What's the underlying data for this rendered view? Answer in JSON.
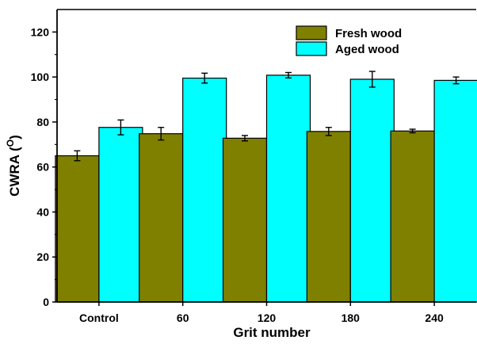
{
  "chart_data": {
    "type": "bar",
    "title": "",
    "xlabel": "Grit number",
    "ylabel": "CWRA (",
    "ylabel_superscript": "O",
    "ylabel_suffix": ")",
    "categories": [
      "Control",
      "60",
      "120",
      "180",
      "240"
    ],
    "ylim": [
      0,
      130
    ],
    "yticks": [
      0,
      20,
      40,
      60,
      80,
      100,
      120
    ],
    "grid": false,
    "legend_position": "top-right",
    "series": [
      {
        "name": "Fresh wood",
        "color": "#808000",
        "values": [
          65.0,
          74.8,
          72.8,
          75.8,
          76.0
        ],
        "errors": [
          2.2,
          2.8,
          1.2,
          1.8,
          0.8
        ]
      },
      {
        "name": "Aged wood",
        "color": "#00FFFF",
        "values": [
          77.6,
          99.5,
          100.8,
          99.0,
          98.5
        ],
        "errors": [
          3.3,
          2.2,
          1.2,
          3.5,
          1.5
        ]
      }
    ]
  }
}
